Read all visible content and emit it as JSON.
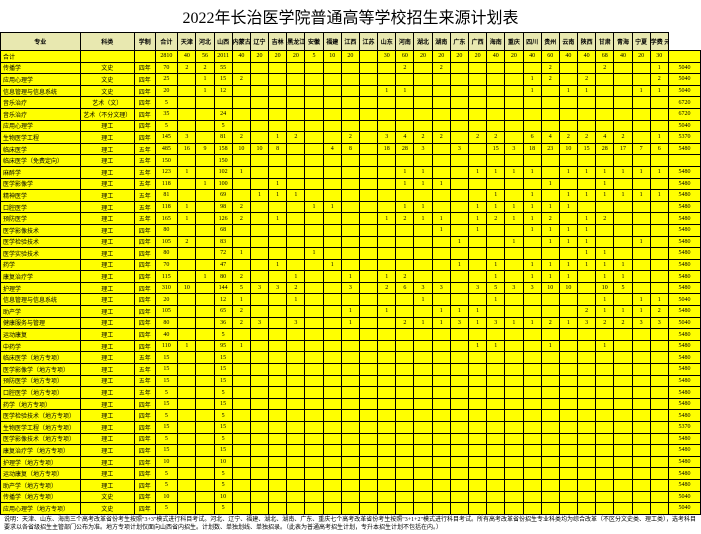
{
  "title": "2022年长治医学院普通高等学校招生来源计划表",
  "headers": [
    "专业",
    "科类",
    "学制",
    "合计",
    "天津",
    "河北",
    "山西",
    "内蒙古",
    "辽宁",
    "吉林",
    "黑龙江",
    "安徽",
    "福建",
    "江西",
    "江苏",
    "山东",
    "河南",
    "湖北",
    "湖南",
    "广东",
    "广西",
    "海南",
    "重庆",
    "四川",
    "贵州",
    "云南",
    "陕西",
    "甘肃",
    "青海",
    "宁夏",
    "学费 元/生/年"
  ],
  "footnote": "说明：天津、山东、海南三个高考改革省份考生按照\"3+3\"模式进行科目考试。河北、辽宁、福建、湖北、湖南、广东、重庆七个高考改革省份考生按照\"3+1+2\"模式进行科目考试。所有高考改革省份招生专业科类均为综合改革（不区分文史类、理工类），选考科目要求以各省级招生主管部门公布为准。地方专项计划仅面向山西省内招生。计划数、单独划线、单独招录。（此表为普通高考招生计划，专升本招生计划不包括在内。）",
  "yellow_bg": "#ffff00",
  "header_bg": "#e8e8b0",
  "rows": [
    {
      "major": "合计",
      "cat": "",
      "sys": "",
      "total": "2810",
      "v": [
        "40",
        "56",
        "2011",
        "40",
        "20",
        "20",
        "20",
        "5",
        "10",
        "20",
        "",
        "30",
        "60",
        "20",
        "20",
        "20",
        "20",
        "40",
        "20",
        "40",
        "60",
        "40",
        "40",
        "68",
        "40",
        "20",
        "30"
      ],
      "fee": ""
    },
    {
      "major": "传播学",
      "cat": "文史",
      "sys": "四年",
      "total": "70",
      "v": [
        "2",
        "2",
        "55",
        "",
        "",
        "",
        "",
        "",
        "",
        "",
        "",
        "",
        "2",
        "",
        "2",
        "",
        "",
        "",
        "",
        "",
        "2",
        "",
        "",
        "2",
        "",
        "",
        "1"
      ],
      "fee": "5040"
    },
    {
      "major": "应用心理学",
      "cat": "文史",
      "sys": "四年",
      "total": "25",
      "v": [
        "",
        "1",
        "15",
        "2",
        "",
        "",
        "",
        "",
        "",
        "",
        "",
        "",
        "",
        "",
        "",
        "",
        "",
        "",
        "",
        "1",
        "2",
        "",
        "2",
        "",
        "",
        "",
        "2"
      ],
      "fee": "5040"
    },
    {
      "major": "信息管理与信息系统",
      "cat": "文史",
      "sys": "四年",
      "total": "20",
      "v": [
        "",
        "1",
        "12",
        "",
        "",
        "",
        "",
        "",
        "",
        "",
        "",
        "1",
        "1",
        "",
        "",
        "",
        "",
        "",
        "",
        "1",
        "",
        "1",
        "1",
        "",
        "",
        "1",
        "1"
      ],
      "fee": "5040"
    },
    {
      "major": "音乐治疗",
      "cat": "艺术（文）",
      "sys": "四年",
      "total": "5",
      "v": [
        "",
        "",
        "",
        "",
        "",
        "",
        "",
        "",
        "",
        "",
        "",
        "",
        "",
        "",
        "",
        "",
        "",
        "",
        "",
        "",
        "",
        "",
        "",
        "",
        "",
        "",
        ""
      ],
      "fee": "6720"
    },
    {
      "major": "音乐治疗",
      "cat": "艺术（不分文理）",
      "sys": "四年",
      "total": "35",
      "v": [
        "",
        "",
        "24",
        "",
        "",
        "",
        "",
        "",
        "",
        "",
        "",
        "",
        "",
        "",
        "",
        "",
        "",
        "",
        "",
        "",
        "",
        "",
        "",
        "",
        "",
        "",
        ""
      ],
      "fee": "6720"
    },
    {
      "major": "应用心理学",
      "cat": "理工",
      "sys": "四年",
      "total": "5",
      "v": [
        "",
        "",
        "5",
        "",
        "",
        "",
        "",
        "",
        "",
        "",
        "",
        "",
        "",
        "",
        "",
        "",
        "",
        "",
        "",
        "",
        "",
        "",
        "",
        "",
        "",
        "",
        ""
      ],
      "fee": "5040"
    },
    {
      "major": "生物医学工程",
      "cat": "理工",
      "sys": "四年",
      "total": "145",
      "v": [
        "3",
        "",
        "81",
        "2",
        "",
        "1",
        "2",
        "",
        "",
        "2",
        "",
        "3",
        "4",
        "2",
        "2",
        "",
        "2",
        "2",
        "",
        "6",
        "4",
        "2",
        "2",
        "4",
        "2",
        "",
        "1"
      ],
      "fee": "5370"
    },
    {
      "major": "临床医学",
      "cat": "理工",
      "sys": "五年",
      "total": "485",
      "v": [
        "16",
        "9",
        "158",
        "10",
        "10",
        "8",
        "",
        "",
        "4",
        "8",
        "",
        "18",
        "28",
        "3",
        "",
        "3",
        "",
        "15",
        "3",
        "18",
        "23",
        "10",
        "15",
        "28",
        "17",
        "7",
        "6"
      ],
      "fee": "5480"
    },
    {
      "major": "临床医学（免费定向）",
      "cat": "理工",
      "sys": "五年",
      "total": "150",
      "v": [
        "",
        "",
        "150",
        "",
        "",
        "",
        "",
        "",
        "",
        "",
        "",
        "",
        "",
        "",
        "",
        "",
        "",
        "",
        "",
        "",
        "",
        "",
        "",
        "",
        "",
        "",
        ""
      ],
      "fee": ""
    },
    {
      "major": "麻醉学",
      "cat": "理工",
      "sys": "五年",
      "total": "123",
      "v": [
        "1",
        "",
        "102",
        "1",
        "",
        "",
        "",
        "",
        "",
        "",
        "",
        "",
        "1",
        "1",
        "",
        "",
        "1",
        "1",
        "1",
        "1",
        "",
        "1",
        "1",
        "1",
        "1",
        "1",
        "1"
      ],
      "fee": "5480"
    },
    {
      "major": "医学影像学",
      "cat": "理工",
      "sys": "五年",
      "total": "118",
      "v": [
        "",
        "1",
        "100",
        "",
        "",
        "1",
        "",
        "",
        "",
        "",
        "",
        "",
        "1",
        "1",
        "1",
        "",
        "",
        "",
        "",
        "",
        "1",
        "",
        "",
        "1",
        "",
        "",
        ""
      ],
      "fee": "5480"
    },
    {
      "major": "精神医学",
      "cat": "理工",
      "sys": "五年",
      "total": "81",
      "v": [
        "",
        "",
        "69",
        "",
        "1",
        "1",
        "1",
        "",
        "",
        "",
        "",
        "",
        "",
        "",
        "",
        "",
        "",
        "1",
        "",
        "1",
        "",
        "1",
        "1",
        "1",
        "1",
        "1",
        "1"
      ],
      "fee": "5480"
    },
    {
      "major": "口腔医学",
      "cat": "理工",
      "sys": "五年",
      "total": "118",
      "v": [
        "1",
        "",
        "98",
        "2",
        "",
        "",
        "",
        "1",
        "1",
        "",
        "",
        "",
        "1",
        "1",
        "",
        "",
        "1",
        "1",
        "1",
        "1",
        "1",
        "1",
        "",
        "",
        "",
        "",
        ""
      ],
      "fee": "5480"
    },
    {
      "major": "预防医学",
      "cat": "理工",
      "sys": "五年",
      "total": "165",
      "v": [
        "1",
        "",
        "126",
        "2",
        "",
        "1",
        "",
        "",
        "",
        "",
        "",
        "1",
        "2",
        "1",
        "1",
        "",
        "1",
        "2",
        "1",
        "1",
        "2",
        "",
        "1",
        "2",
        "",
        "",
        ""
      ],
      "fee": "5480"
    },
    {
      "major": "医学影像技术",
      "cat": "理工",
      "sys": "四年",
      "total": "80",
      "v": [
        "",
        "",
        "68",
        "",
        "",
        "",
        "",
        "",
        "",
        "",
        "",
        "",
        "",
        "",
        "1",
        "",
        "1",
        "",
        "",
        "1",
        "1",
        "1",
        "1",
        "",
        "",
        "",
        ""
      ],
      "fee": "5480"
    },
    {
      "major": "医学检验技术",
      "cat": "理工",
      "sys": "四年",
      "total": "105",
      "v": [
        "2",
        "",
        "83",
        "",
        "",
        "",
        "",
        "",
        "",
        "",
        "",
        "",
        "",
        "",
        "",
        "1",
        "",
        "",
        "1",
        "",
        "1",
        "1",
        "1",
        "",
        "",
        "1",
        ""
      ],
      "fee": "5480"
    },
    {
      "major": "医学实验技术",
      "cat": "理工",
      "sys": "四年",
      "total": "80",
      "v": [
        "",
        "",
        "72",
        "1",
        "",
        "",
        "",
        "1",
        "",
        "",
        "",
        "",
        "",
        "",
        "",
        "",
        "",
        "",
        "",
        "",
        "",
        "",
        "1",
        "1",
        "",
        "",
        ""
      ],
      "fee": "5480"
    },
    {
      "major": "药学",
      "cat": "理工",
      "sys": "四年",
      "total": "70",
      "v": [
        "",
        "",
        "47",
        "",
        "",
        "1",
        "",
        "",
        "1",
        "",
        "",
        "",
        "",
        "",
        "",
        "1",
        "",
        "1",
        "",
        "1",
        "1",
        "1",
        "1",
        "1",
        "1",
        "",
        ""
      ],
      "fee": "5480"
    },
    {
      "major": "康复治疗学",
      "cat": "理工",
      "sys": "四年",
      "total": "115",
      "v": [
        "",
        "1",
        "80",
        "2",
        "",
        "",
        "1",
        "",
        "",
        "1",
        "",
        "1",
        "2",
        "",
        "",
        "",
        "",
        "1",
        "",
        "1",
        "1",
        "1",
        "",
        "1",
        "1",
        "",
        ""
      ],
      "fee": "5480"
    },
    {
      "major": "护理学",
      "cat": "理工",
      "sys": "四年",
      "total": "310",
      "v": [
        "10",
        "",
        "144",
        "5",
        "3",
        "3",
        "2",
        "",
        "",
        "3",
        "",
        "2",
        "6",
        "3",
        "3",
        "",
        "3",
        "5",
        "3",
        "3",
        "10",
        "10",
        "",
        "10",
        "5",
        "",
        ""
      ],
      "fee": "5480"
    },
    {
      "major": "信息管理与信息系统",
      "cat": "理工",
      "sys": "四年",
      "total": "20",
      "v": [
        "",
        "",
        "12",
        "1",
        "",
        "",
        "1",
        "",
        "",
        "",
        "",
        "",
        "",
        "1",
        "",
        "",
        "",
        "1",
        "",
        "",
        "",
        "",
        "",
        "1",
        "",
        "1",
        "1"
      ],
      "fee": "5040"
    },
    {
      "major": "助产学",
      "cat": "理工",
      "sys": "四年",
      "total": "105",
      "v": [
        "",
        "",
        "65",
        "2",
        "",
        "",
        "",
        "",
        "",
        "1",
        "",
        "1",
        "",
        "",
        "1",
        "1",
        "1",
        "",
        "",
        "",
        "",
        "",
        "2",
        "1",
        "1",
        "1",
        "2"
      ],
      "fee": "5480"
    },
    {
      "major": "健康服务与管理",
      "cat": "理工",
      "sys": "四年",
      "total": "80",
      "v": [
        "",
        "",
        "36",
        "2",
        "3",
        "",
        "3",
        "",
        "",
        "1",
        "",
        "",
        "2",
        "1",
        "1",
        "3",
        "1",
        "3",
        "1",
        "1",
        "2",
        "1",
        "3",
        "2",
        "2",
        "3",
        "3"
      ],
      "fee": "5040"
    },
    {
      "major": "运动康复",
      "cat": "理工",
      "sys": "四年",
      "total": "40",
      "v": [
        "",
        "",
        "5",
        "",
        "",
        "",
        "",
        "",
        "",
        "",
        "",
        "",
        "",
        "",
        "",
        "",
        "",
        "",
        "",
        "",
        "",
        "",
        "",
        "",
        "",
        "",
        ""
      ],
      "fee": "5480"
    },
    {
      "major": "中药学",
      "cat": "理工",
      "sys": "四年",
      "total": "110",
      "v": [
        "1",
        "",
        "95",
        "1",
        "",
        "",
        "",
        "",
        "",
        "",
        "",
        "",
        "",
        "",
        "",
        "",
        "1",
        "1",
        "",
        "",
        "1",
        "",
        "",
        "1",
        "",
        "",
        ""
      ],
      "fee": "5480"
    },
    {
      "major": "临床医学（地方专项）",
      "cat": "理工",
      "sys": "五年",
      "total": "15",
      "v": [
        "",
        "",
        "15",
        "",
        "",
        "",
        "",
        "",
        "",
        "",
        "",
        "",
        "",
        "",
        "",
        "",
        "",
        "",
        "",
        "",
        "",
        "",
        "",
        "",
        "",
        "",
        ""
      ],
      "fee": "5480"
    },
    {
      "major": "医学影像学（地方专项）",
      "cat": "理工",
      "sys": "五年",
      "total": "15",
      "v": [
        "",
        "",
        "15",
        "",
        "",
        "",
        "",
        "",
        "",
        "",
        "",
        "",
        "",
        "",
        "",
        "",
        "",
        "",
        "",
        "",
        "",
        "",
        "",
        "",
        "",
        "",
        ""
      ],
      "fee": "5480"
    },
    {
      "major": "预防医学（地方专项）",
      "cat": "理工",
      "sys": "五年",
      "total": "15",
      "v": [
        "",
        "",
        "15",
        "",
        "",
        "",
        "",
        "",
        "",
        "",
        "",
        "",
        "",
        "",
        "",
        "",
        "",
        "",
        "",
        "",
        "",
        "",
        "",
        "",
        "",
        "",
        ""
      ],
      "fee": "5480"
    },
    {
      "major": "口腔医学（地方专项）",
      "cat": "理工",
      "sys": "五年",
      "total": "5",
      "v": [
        "",
        "",
        "5",
        "",
        "",
        "",
        "",
        "",
        "",
        "",
        "",
        "",
        "",
        "",
        "",
        "",
        "",
        "",
        "",
        "",
        "",
        "",
        "",
        "",
        "",
        "",
        ""
      ],
      "fee": "5480"
    },
    {
      "major": "药学（地方专项）",
      "cat": "理工",
      "sys": "四年",
      "total": "15",
      "v": [
        "",
        "",
        "15",
        "",
        "",
        "",
        "",
        "",
        "",
        "",
        "",
        "",
        "",
        "",
        "",
        "",
        "",
        "",
        "",
        "",
        "",
        "",
        "",
        "",
        "",
        "",
        ""
      ],
      "fee": "5480"
    },
    {
      "major": "医学检验技术（地方专项）",
      "cat": "理工",
      "sys": "四年",
      "total": "5",
      "v": [
        "",
        "",
        "5",
        "",
        "",
        "",
        "",
        "",
        "",
        "",
        "",
        "",
        "",
        "",
        "",
        "",
        "",
        "",
        "",
        "",
        "",
        "",
        "",
        "",
        "",
        "",
        ""
      ],
      "fee": "5480"
    },
    {
      "major": "生物医学工程（地方专项）",
      "cat": "理工",
      "sys": "四年",
      "total": "15",
      "v": [
        "",
        "",
        "15",
        "",
        "",
        "",
        "",
        "",
        "",
        "",
        "",
        "",
        "",
        "",
        "",
        "",
        "",
        "",
        "",
        "",
        "",
        "",
        "",
        "",
        "",
        "",
        ""
      ],
      "fee": "5370"
    },
    {
      "major": "医学影像技术（地方专项）",
      "cat": "理工",
      "sys": "四年",
      "total": "5",
      "v": [
        "",
        "",
        "5",
        "",
        "",
        "",
        "",
        "",
        "",
        "",
        "",
        "",
        "",
        "",
        "",
        "",
        "",
        "",
        "",
        "",
        "",
        "",
        "",
        "",
        "",
        "",
        ""
      ],
      "fee": "5480"
    },
    {
      "major": "康复治疗学（地方专项）",
      "cat": "理工",
      "sys": "四年",
      "total": "15",
      "v": [
        "",
        "",
        "15",
        "",
        "",
        "",
        "",
        "",
        "",
        "",
        "",
        "",
        "",
        "",
        "",
        "",
        "",
        "",
        "",
        "",
        "",
        "",
        "",
        "",
        "",
        "",
        ""
      ],
      "fee": "5480"
    },
    {
      "major": "护理学（地方专项）",
      "cat": "理工",
      "sys": "四年",
      "total": "10",
      "v": [
        "",
        "",
        "10",
        "",
        "",
        "",
        "",
        "",
        "",
        "",
        "",
        "",
        "",
        "",
        "",
        "",
        "",
        "",
        "",
        "",
        "",
        "",
        "",
        "",
        "",
        "",
        ""
      ],
      "fee": "5480"
    },
    {
      "major": "运动康复（地方专项）",
      "cat": "理工",
      "sys": "四年",
      "total": "5",
      "v": [
        "",
        "",
        "5",
        "",
        "",
        "",
        "",
        "",
        "",
        "",
        "",
        "",
        "",
        "",
        "",
        "",
        "",
        "",
        "",
        "",
        "",
        "",
        "",
        "",
        "",
        "",
        ""
      ],
      "fee": "5480"
    },
    {
      "major": "助产学（地方专项）",
      "cat": "理工",
      "sys": "四年",
      "total": "5",
      "v": [
        "",
        "",
        "5",
        "",
        "",
        "",
        "",
        "",
        "",
        "",
        "",
        "",
        "",
        "",
        "",
        "",
        "",
        "",
        "",
        "",
        "",
        "",
        "",
        "",
        "",
        "",
        ""
      ],
      "fee": "5480"
    },
    {
      "major": "传播学（地方专项）",
      "cat": "文史",
      "sys": "四年",
      "total": "10",
      "v": [
        "",
        "",
        "10",
        "",
        "",
        "",
        "",
        "",
        "",
        "",
        "",
        "",
        "",
        "",
        "",
        "",
        "",
        "",
        "",
        "",
        "",
        "",
        "",
        "",
        "",
        "",
        ""
      ],
      "fee": "5040"
    },
    {
      "major": "应用心理学（地方专项）",
      "cat": "文史",
      "sys": "四年",
      "total": "5",
      "v": [
        "",
        "",
        "5",
        "",
        "",
        "",
        "",
        "",
        "",
        "",
        "",
        "",
        "",
        "",
        "",
        "",
        "",
        "",
        "",
        "",
        "",
        "",
        "",
        "",
        "",
        "",
        ""
      ],
      "fee": "5040"
    }
  ]
}
